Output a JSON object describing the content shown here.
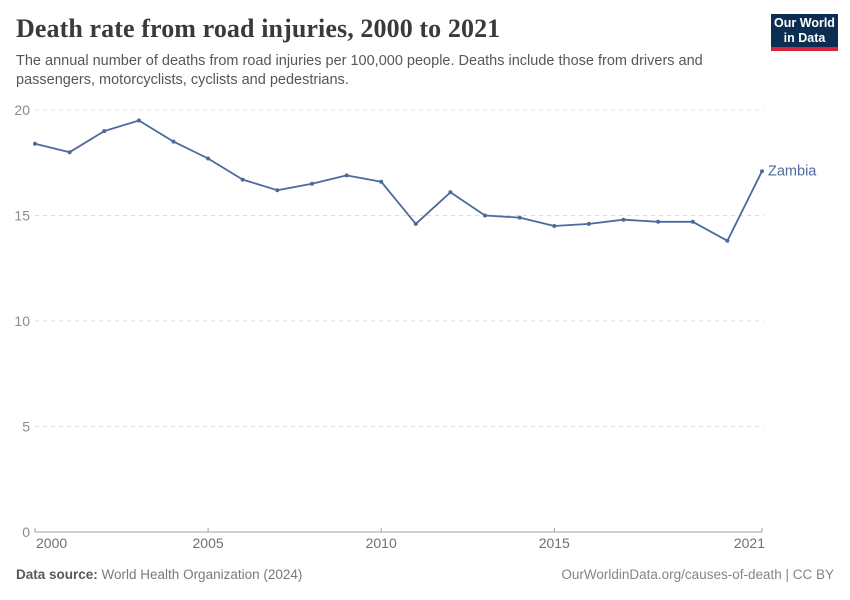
{
  "header": {
    "title": "Death rate from road injuries, 2000 to 2021",
    "subtitle": "The annual number of deaths from road injuries per 100,000 people. Deaths include those from drivers and passengers, motorcyclists, cyclists and pedestrians."
  },
  "logo": {
    "line1": "Our World",
    "line2": "in Data",
    "bg_color": "#0d2e53",
    "accent_color": "#d8233c"
  },
  "chart_data": {
    "type": "line",
    "title": "Death rate from road injuries, 2000 to 2021",
    "x": [
      2000,
      2001,
      2002,
      2003,
      2004,
      2005,
      2006,
      2007,
      2008,
      2009,
      2010,
      2011,
      2012,
      2013,
      2014,
      2015,
      2016,
      2017,
      2018,
      2019,
      2020,
      2021
    ],
    "series": [
      {
        "name": "Zambia",
        "color": "#4c6a9c",
        "values": [
          18.4,
          18.0,
          19.0,
          19.5,
          18.5,
          17.7,
          16.7,
          16.2,
          16.5,
          16.9,
          16.6,
          14.6,
          16.1,
          15.0,
          14.9,
          14.5,
          14.6,
          14.8,
          14.7,
          14.7,
          13.8,
          17.1
        ]
      }
    ],
    "xlabel": "",
    "ylabel": "",
    "ylim": [
      0,
      20
    ],
    "yticks": [
      0,
      5,
      10,
      15,
      20
    ],
    "xticks": [
      2000,
      2005,
      2010,
      2015,
      2021
    ],
    "grid": "horizontal-dashed",
    "legend_position": "end-of-line-label",
    "entity_label": "Zambia"
  },
  "colors": {
    "line": "#4c6a9c",
    "grid": "#dcdcdc",
    "axis": "#a0a0a0",
    "y_tick_label": "#8c8c8c",
    "x_tick_label": "#707070",
    "entity_label": "#4c6a9c"
  },
  "footer": {
    "source_label": "Data source:",
    "source_value": " World Health Organization (2024)",
    "credit": "OurWorldinData.org/causes-of-death | CC BY"
  }
}
